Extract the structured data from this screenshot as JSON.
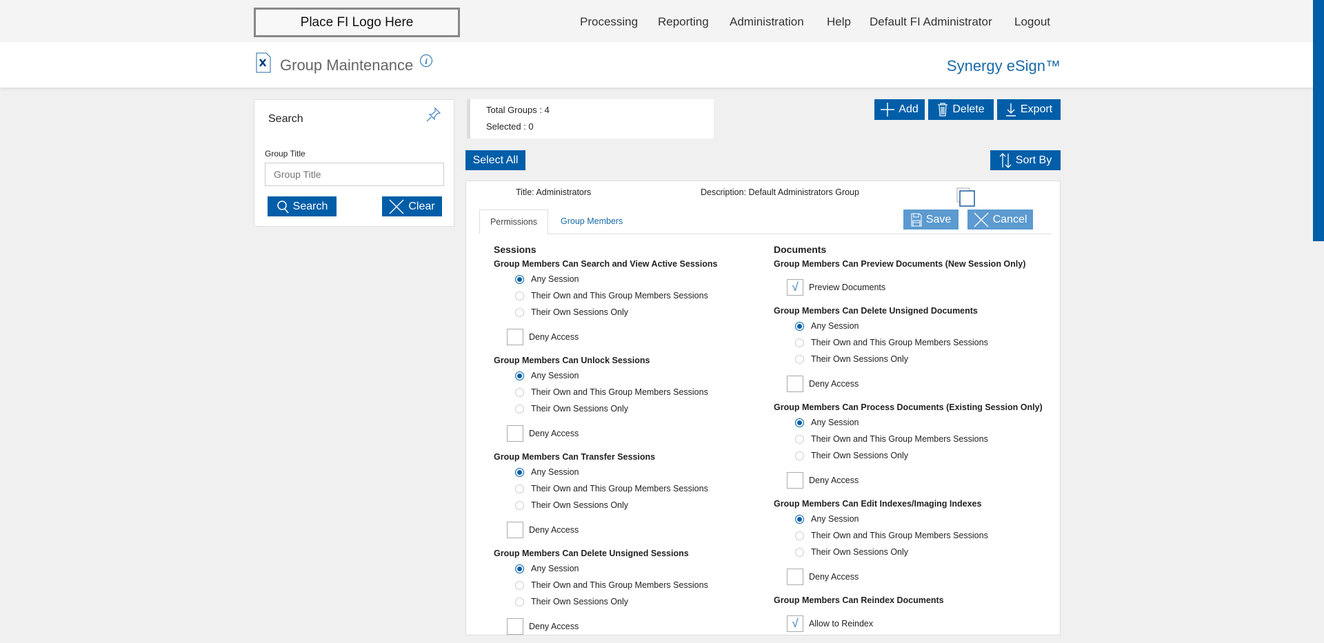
{
  "topbar": {
    "logo": "Place FI Logo Here",
    "nav": [
      "Processing",
      "Reporting",
      "Administration",
      "Help",
      "Default FI Administrator",
      "Logout"
    ]
  },
  "header": {
    "title": "Group Maintenance",
    "brand": "Synergy eSign™"
  },
  "search": {
    "title": "Search",
    "field_label": "Group Title",
    "placeholder": "Group Title",
    "search_label": "Search",
    "clear_label": "Clear"
  },
  "stats": {
    "total": "Total Groups : 4",
    "selected": "Selected : 0"
  },
  "toolbar": {
    "add": "Add",
    "delete": "Delete",
    "export": "Export",
    "select_all": "Select All",
    "sort_by": "Sort By"
  },
  "group": {
    "title": "Title:  Administrators",
    "description": "Description: Default Administrators Group",
    "tabs": [
      "Permissions",
      "Group Members"
    ],
    "save": "Save",
    "cancel": "Cancel"
  },
  "colors": {
    "accent": "#005ea8",
    "disabled": "#5c9ad0"
  },
  "sessions": {
    "heading": "Sessions",
    "groups": [
      {
        "title": "Group Members Can Search and View Active Sessions",
        "type": "radio",
        "options": [
          "Any Session",
          "Their Own and This Group Members Sessions",
          "Their Own Sessions Only"
        ],
        "selected": 0,
        "deny": "Deny Access"
      },
      {
        "title": "Group Members Can Unlock Sessions",
        "type": "radio",
        "options": [
          "Any Session",
          "Their Own and This Group Members Sessions",
          "Their Own Sessions Only"
        ],
        "selected": 0,
        "deny": "Deny Access"
      },
      {
        "title": "Group Members Can Transfer Sessions",
        "type": "radio",
        "options": [
          "Any Session",
          "Their Own and This Group Members Sessions",
          "Their Own Sessions Only"
        ],
        "selected": 0,
        "deny": "Deny Access"
      },
      {
        "title": "Group Members Can Delete Unsigned Sessions",
        "type": "radio",
        "options": [
          "Any Session",
          "Their Own and This Group Members Sessions",
          "Their Own Sessions Only"
        ],
        "selected": 0,
        "deny": "Deny Access"
      }
    ]
  },
  "documents": {
    "heading": "Documents",
    "groups": [
      {
        "title": "Group Members Can Preview Documents (New Session Only)",
        "type": "checkbox",
        "label": "Preview Documents",
        "checked": true
      },
      {
        "title": "Group Members Can Delete Unsigned Documents",
        "type": "radio",
        "options": [
          "Any Session",
          "Their Own and This Group Members Sessions",
          "Their Own Sessions Only"
        ],
        "selected": 0,
        "deny": "Deny Access"
      },
      {
        "title": "Group Members Can Process Documents (Existing Session Only)",
        "type": "radio",
        "options": [
          "Any Session",
          "Their Own and This Group Members Sessions",
          "Their Own Sessions Only"
        ],
        "selected": 0,
        "deny": "Deny Access"
      },
      {
        "title": "Group Members Can Edit Indexes/Imaging Indexes",
        "type": "radio",
        "options": [
          "Any Session",
          "Their Own and This Group Members Sessions",
          "Their Own Sessions Only"
        ],
        "selected": 0,
        "deny": "Deny Access"
      },
      {
        "title": "Group Members Can Reindex Documents",
        "type": "checkbox",
        "label": "Allow to Reindex",
        "checked": true
      }
    ]
  }
}
